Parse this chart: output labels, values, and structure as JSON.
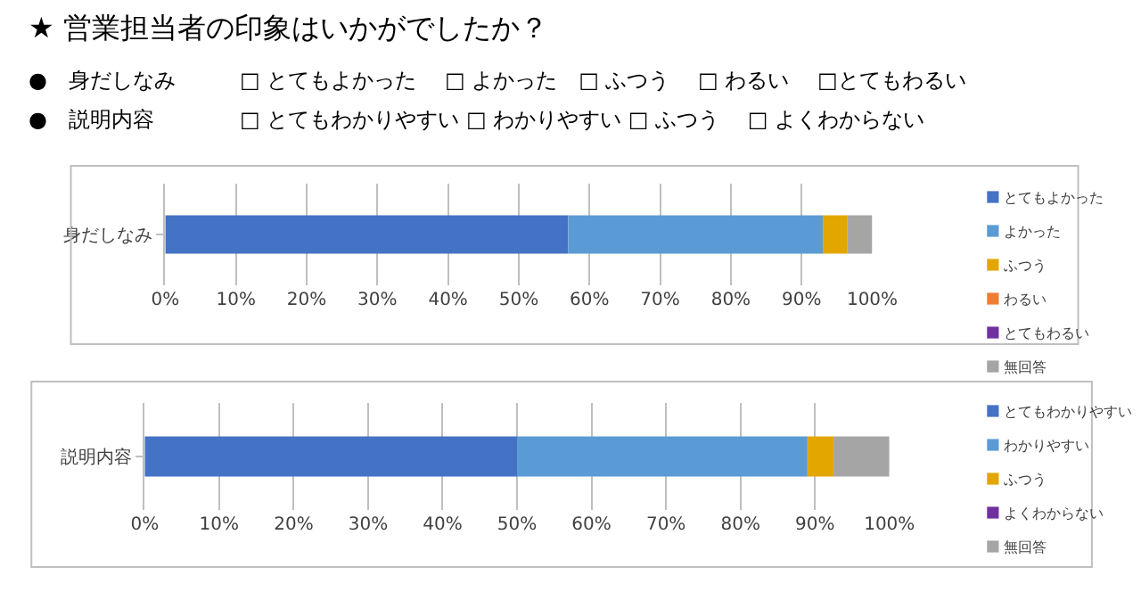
{
  "chart_data": [
    {
      "type": "bar",
      "orientation": "horizontal",
      "stacked": true,
      "title": "★ 営業担当者の印象はいかがでしたか？",
      "annotations": [
        "●　身だしなみ　　　□ とてもよかった　 □ よかった　□ ふつう　 □ わるい　 □とてもわるい",
        "●　説明内容　　　　□ とてもわかりやすい □ わかりやすい □ ふつう　 □ よくわからない"
      ],
      "categories": [
        "身だしなみ"
      ],
      "series": [
        {
          "name": "とてもよかった",
          "color": "#4472c4",
          "values": [
            57
          ]
        },
        {
          "name": "よかった",
          "color": "#5b9bd5",
          "values": [
            36
          ]
        },
        {
          "name": "ふつう",
          "color": "#e3a600",
          "values": [
            3.5
          ]
        },
        {
          "name": "わるい",
          "color": "#ed7d31",
          "values": [
            0
          ]
        },
        {
          "name": "とてもわるい",
          "color": "#7030a0",
          "values": [
            0
          ]
        },
        {
          "name": "無回答",
          "color": "#a5a5a5",
          "values": [
            3.5
          ]
        }
      ],
      "xlim": [
        0,
        100
      ],
      "xticks": [
        {
          "value": 0,
          "label": "0%"
        },
        {
          "value": 10,
          "label": "10%"
        },
        {
          "value": 20,
          "label": "20%"
        },
        {
          "value": 30,
          "label": "30%"
        },
        {
          "value": 40,
          "label": "40%"
        },
        {
          "value": 50,
          "label": "50%"
        },
        {
          "value": 60,
          "label": "60%"
        },
        {
          "value": 70,
          "label": "70%"
        },
        {
          "value": 80,
          "label": "80%"
        },
        {
          "value": 90,
          "label": "90%"
        },
        {
          "value": 100,
          "label": "100%"
        }
      ],
      "grid": "x",
      "legend": "right"
    },
    {
      "type": "bar",
      "orientation": "horizontal",
      "stacked": true,
      "categories": [
        "説明内容"
      ],
      "series": [
        {
          "name": "とてもわかりやすい",
          "color": "#4472c4",
          "values": [
            50
          ]
        },
        {
          "name": "わかりやすい",
          "color": "#5b9bd5",
          "values": [
            39
          ]
        },
        {
          "name": "ふつう",
          "color": "#e3a600",
          "values": [
            3.5
          ]
        },
        {
          "name": "よくわからない",
          "color": "#7030a0",
          "values": [
            0
          ]
        },
        {
          "name": "無回答",
          "color": "#a5a5a5",
          "values": [
            7.5
          ]
        }
      ],
      "xlim": [
        0,
        100
      ],
      "xticks": [
        {
          "value": 0,
          "label": "0%"
        },
        {
          "value": 10,
          "label": "10%"
        },
        {
          "value": 20,
          "label": "20%"
        },
        {
          "value": 30,
          "label": "30%"
        },
        {
          "value": 40,
          "label": "40%"
        },
        {
          "value": 50,
          "label": "50%"
        },
        {
          "value": 60,
          "label": "60%"
        },
        {
          "value": 70,
          "label": "70%"
        },
        {
          "value": 80,
          "label": "80%"
        },
        {
          "value": 90,
          "label": "90%"
        },
        {
          "value": 100,
          "label": "100%"
        }
      ],
      "grid": "x",
      "legend": "right"
    }
  ]
}
